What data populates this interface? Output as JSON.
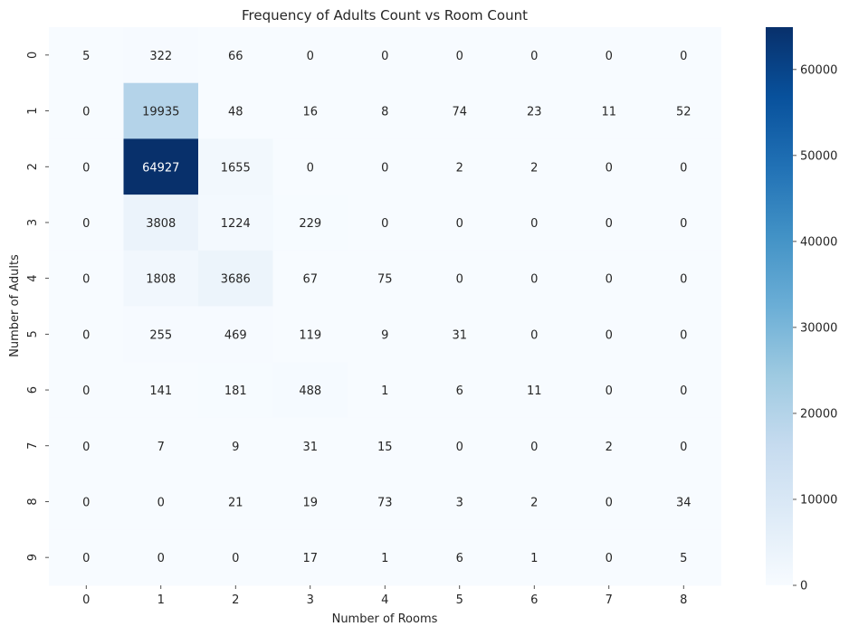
{
  "chart_data": {
    "type": "heatmap",
    "title": "Frequency of Adults Count vs Room Count",
    "xlabel": "Number of Rooms",
    "ylabel": "Number of Adults",
    "x_categories": [
      "0",
      "1",
      "2",
      "3",
      "4",
      "5",
      "6",
      "7",
      "8"
    ],
    "y_categories": [
      "0",
      "1",
      "2",
      "3",
      "4",
      "5",
      "6",
      "7",
      "8",
      "9"
    ],
    "values": [
      [
        5,
        322,
        66,
        0,
        0,
        0,
        0,
        0,
        0
      ],
      [
        0,
        19935,
        48,
        16,
        8,
        74,
        23,
        11,
        52
      ],
      [
        0,
        64927,
        1655,
        0,
        0,
        2,
        2,
        0,
        0
      ],
      [
        0,
        3808,
        1224,
        229,
        0,
        0,
        0,
        0,
        0
      ],
      [
        0,
        1808,
        3686,
        67,
        75,
        0,
        0,
        0,
        0
      ],
      [
        0,
        255,
        469,
        119,
        9,
        31,
        0,
        0,
        0
      ],
      [
        0,
        141,
        181,
        488,
        1,
        6,
        11,
        0,
        0
      ],
      [
        0,
        7,
        9,
        31,
        15,
        0,
        0,
        2,
        0
      ],
      [
        0,
        0,
        21,
        19,
        73,
        3,
        2,
        0,
        34
      ],
      [
        0,
        0,
        0,
        17,
        1,
        6,
        1,
        0,
        5
      ]
    ],
    "colormap": "Blues",
    "colorbar": {
      "range": [
        0,
        64927
      ],
      "ticks": [
        0,
        10000,
        20000,
        30000,
        40000,
        50000,
        60000
      ]
    },
    "grid": false,
    "legend": "none"
  }
}
